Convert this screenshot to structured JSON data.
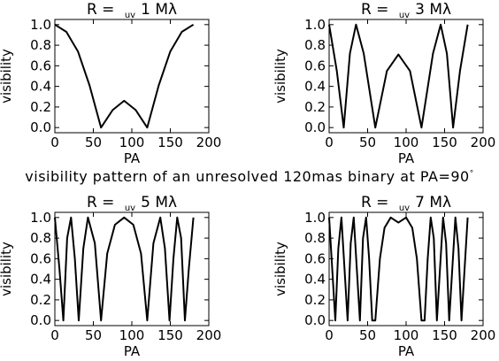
{
  "figure": {
    "caption": "visibility pattern of an unresolved 120mas binary at PA=90",
    "caption_degree": "°"
  },
  "chart_data": [
    {
      "type": "line",
      "title_prefix": "R = ",
      "title_sub": "uv",
      "title_value": "1 Mλ",
      "xlabel": "PA",
      "ylabel": "visibility",
      "xlim": [
        0,
        200
      ],
      "ylim": [
        -0.05,
        1.05
      ],
      "xticks": [
        "0",
        "50",
        "100",
        "150",
        "200"
      ],
      "yticks": [
        "0.0",
        "0.2",
        "0.4",
        "0.6",
        "0.8",
        "1.0"
      ],
      "grid": false,
      "series": [
        {
          "x": [
            0,
            15,
            30,
            45,
            60,
            75,
            90,
            105,
            120,
            135,
            150,
            165,
            180
          ],
          "values": [
            1.0,
            0.93,
            0.74,
            0.41,
            0.0,
            0.17,
            0.26,
            0.17,
            0.0,
            0.41,
            0.74,
            0.93,
            1.0
          ]
        }
      ]
    },
    {
      "type": "line",
      "title_prefix": "R = ",
      "title_sub": "uv",
      "title_value": "3 Mλ",
      "xlabel": "PA",
      "ylabel": "visibility",
      "xlim": [
        0,
        200
      ],
      "ylim": [
        -0.05,
        1.05
      ],
      "xticks": [
        "0",
        "50",
        "100",
        "150",
        "200"
      ],
      "yticks": [
        "0.0",
        "0.2",
        "0.4",
        "0.6",
        "0.8",
        "1.0"
      ],
      "grid": false,
      "series": [
        {
          "x": [
            0,
            10,
            19,
            27,
            35,
            45,
            60,
            75,
            90,
            105,
            120,
            135,
            145,
            153,
            161,
            170,
            180
          ],
          "values": [
            1.0,
            0.55,
            0.0,
            0.72,
            1.0,
            0.72,
            0.0,
            0.55,
            0.71,
            0.55,
            0.0,
            0.72,
            1.0,
            0.72,
            0.0,
            0.55,
            1.0
          ]
        }
      ]
    },
    {
      "type": "line",
      "title_prefix": "R = ",
      "title_sub": "uv",
      "title_value": "5 Mλ",
      "xlabel": "PA",
      "ylabel": "visibility",
      "xlim": [
        0,
        200
      ],
      "ylim": [
        -0.05,
        1.05
      ],
      "xticks": [
        "0",
        "50",
        "100",
        "150",
        "200"
      ],
      "yticks": [
        "0.0",
        "0.2",
        "0.4",
        "0.6",
        "0.8",
        "1.0"
      ],
      "grid": false,
      "series": [
        {
          "x": [
            0,
            6,
            11,
            16,
            21,
            26,
            31,
            37,
            43,
            52,
            60,
            68,
            78,
            90,
            102,
            112,
            120,
            128,
            137,
            143,
            149,
            154,
            159,
            164,
            169,
            174,
            180
          ],
          "values": [
            1.0,
            0.5,
            0.0,
            0.8,
            1.0,
            0.6,
            0.0,
            0.7,
            1.0,
            0.75,
            0.0,
            0.65,
            0.93,
            1.0,
            0.93,
            0.65,
            0.0,
            0.75,
            1.0,
            0.7,
            0.0,
            0.6,
            1.0,
            0.8,
            0.0,
            0.5,
            1.0
          ]
        }
      ]
    },
    {
      "type": "line",
      "title_prefix": "R = ",
      "title_sub": "uv",
      "title_value": "7 Mλ",
      "xlabel": "PA",
      "ylabel": "visibility",
      "xlim": [
        0,
        200
      ],
      "ylim": [
        -0.05,
        1.05
      ],
      "xticks": [
        "0",
        "50",
        "100",
        "150",
        "200"
      ],
      "yticks": [
        "0.0",
        "0.2",
        "0.4",
        "0.6",
        "0.8",
        "1.0"
      ],
      "grid": false,
      "series": [
        {
          "x": [
            0,
            4,
            8,
            12,
            16,
            20,
            24,
            28,
            32,
            36,
            40,
            44,
            48,
            52,
            56,
            60,
            66,
            72,
            80,
            90,
            100,
            108,
            114,
            120,
            124,
            128,
            132,
            136,
            140,
            144,
            148,
            152,
            156,
            160,
            164,
            168,
            172,
            176,
            180
          ],
          "values": [
            1.0,
            0.5,
            0.0,
            0.7,
            1.0,
            0.5,
            0.0,
            0.75,
            1.0,
            0.5,
            0.0,
            0.8,
            1.0,
            0.6,
            0.0,
            0.0,
            0.6,
            0.9,
            1.0,
            0.95,
            1.0,
            0.9,
            0.6,
            0.0,
            0.0,
            0.6,
            1.0,
            0.8,
            0.0,
            0.5,
            1.0,
            0.75,
            0.0,
            0.5,
            1.0,
            0.7,
            0.0,
            0.5,
            1.0
          ]
        }
      ]
    }
  ]
}
